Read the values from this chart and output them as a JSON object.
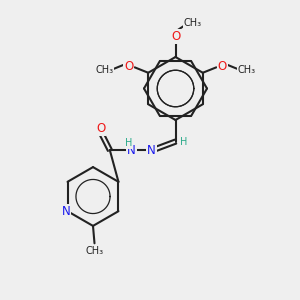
{
  "bg_color": "#efefef",
  "bond_color": "#222222",
  "bond_lw": 1.5,
  "N_color": "#1a1aee",
  "O_color": "#ee1a1a",
  "H_color": "#2aaa8a",
  "font_size": 8.5,
  "small_font": 7.0,
  "xlim": [
    0,
    10
  ],
  "ylim": [
    0,
    10
  ]
}
